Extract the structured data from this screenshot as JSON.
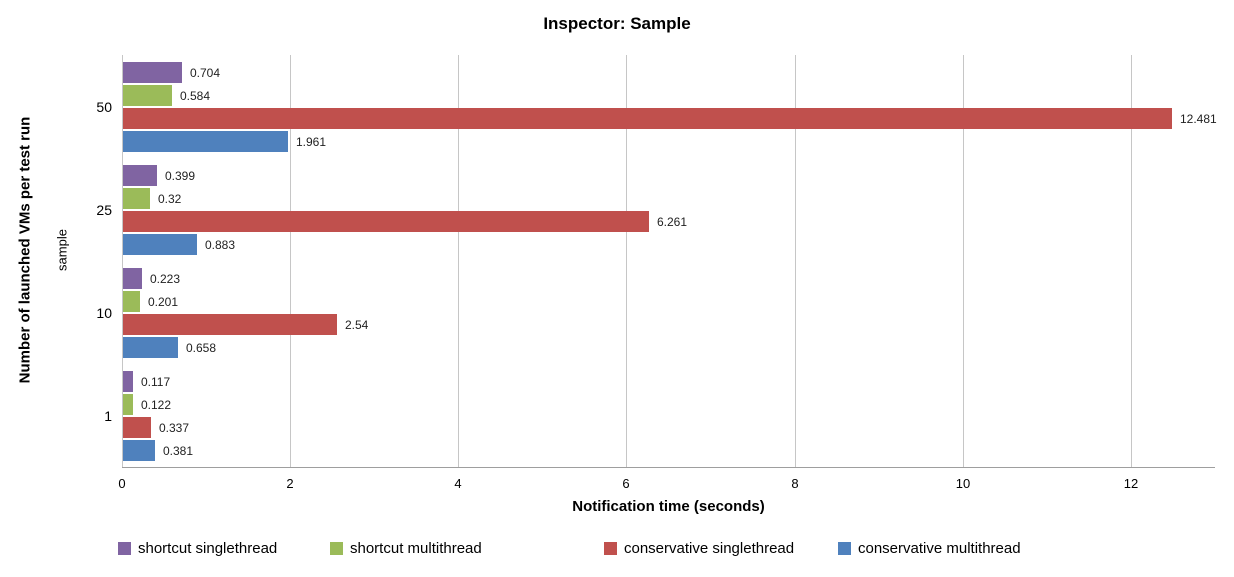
{
  "chart_data": {
    "type": "bar",
    "orientation": "horizontal",
    "title": "Inspector: Sample",
    "xlabel": "Notification time (seconds)",
    "ylabel": "Number of launched VMs per test run",
    "ylabel_secondary": "sample",
    "categories": [
      "50",
      "25",
      "10",
      "1"
    ],
    "series": [
      {
        "name": "shortcut singlethread",
        "color": "#8064A2",
        "values": [
          0.704,
          0.399,
          0.223,
          0.117
        ],
        "labels": [
          "0.704",
          "0.399",
          "0.223",
          "0.117"
        ]
      },
      {
        "name": "shortcut multithread",
        "color": "#9BBB59",
        "values": [
          0.584,
          0.32,
          0.201,
          0.122
        ],
        "labels": [
          "0.584",
          "0.32",
          "0.201",
          "0.122"
        ]
      },
      {
        "name": "conservative singlethread",
        "color": "#C0504D",
        "values": [
          12.481,
          6.261,
          2.54,
          0.337
        ],
        "labels": [
          "12.481",
          "6.261",
          "2.54",
          "0.337"
        ]
      },
      {
        "name": "conservative multithread",
        "color": "#4F81BD",
        "values": [
          1.961,
          0.883,
          0.658,
          0.381
        ],
        "labels": [
          "1.961",
          "0.883",
          "0.658",
          "0.381"
        ]
      }
    ],
    "x_ticks": [
      0,
      2,
      4,
      6,
      8,
      10,
      12
    ],
    "x_tick_labels": [
      "0",
      "2",
      "4",
      "6",
      "8",
      "10",
      "12"
    ],
    "xlim": [
      0,
      13
    ],
    "grid": "vertical",
    "legend_position": "bottom",
    "colors": {
      "background": "#FFFFFF",
      "gridline": "#C6C6C6",
      "axis_line": "#9E9E9E",
      "text": "#000000",
      "data_label_text": "#1F1F1F"
    }
  }
}
